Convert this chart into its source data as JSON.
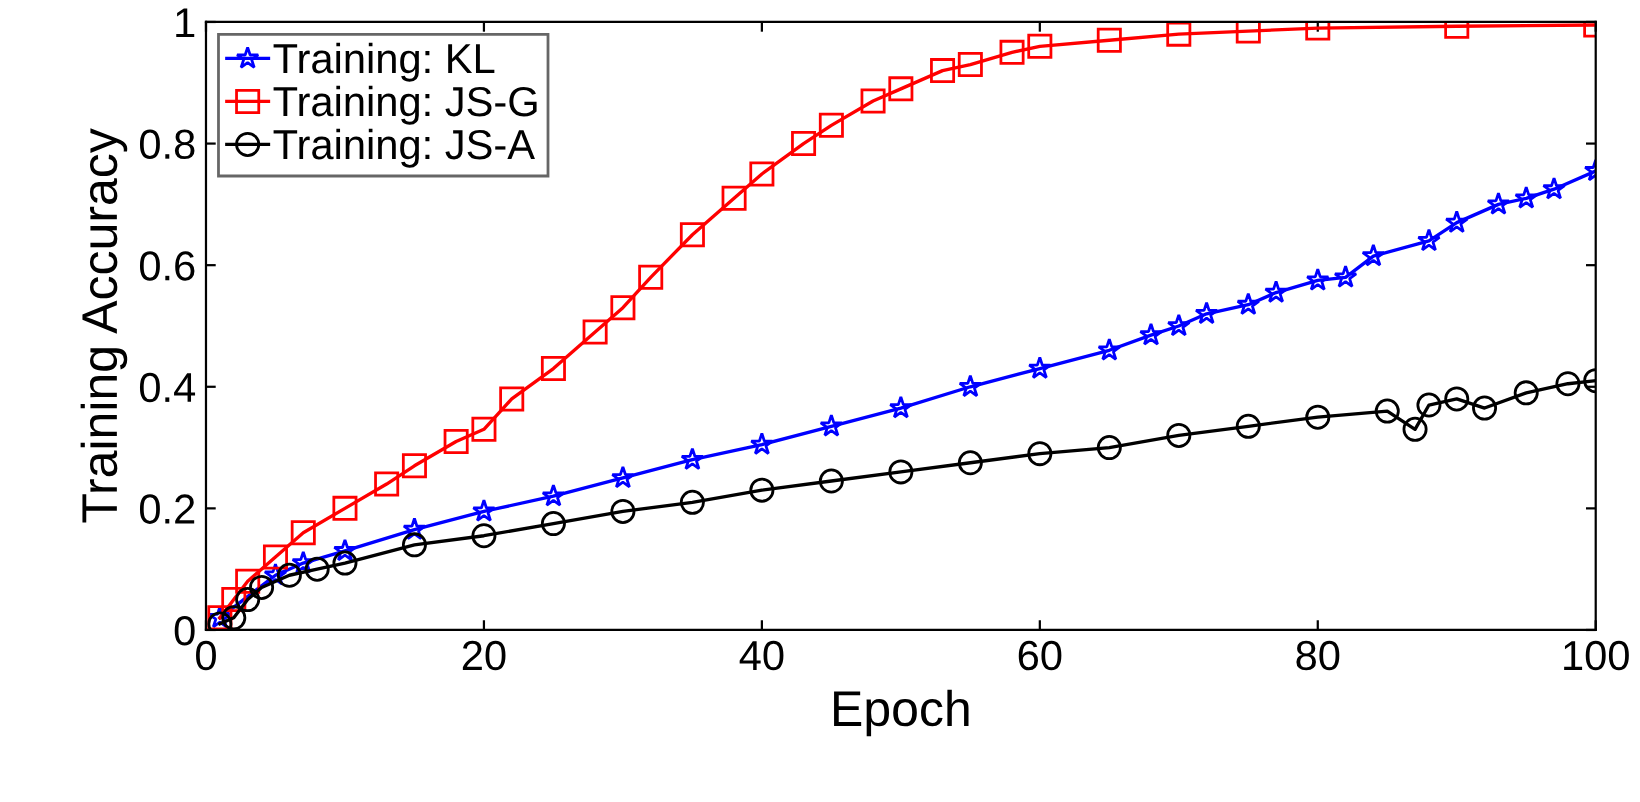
{
  "chart_data": {
    "type": "line",
    "xlabel": "Epoch",
    "ylabel": "Training Accuracy",
    "xlim": [
      0,
      100
    ],
    "ylim": [
      0,
      1
    ],
    "xticks": [
      0,
      20,
      40,
      60,
      80,
      100
    ],
    "yticks": [
      0,
      0.2,
      0.4,
      0.6,
      0.8,
      1
    ],
    "grid": false,
    "legend": "top left",
    "series": [
      {
        "name": "Training: KL",
        "color": "#0000ff",
        "marker": "star",
        "x": [
          1,
          5,
          7,
          10,
          15,
          20,
          25,
          30,
          35,
          40,
          45,
          50,
          55,
          60,
          65,
          68,
          70,
          72,
          75,
          77,
          80,
          82,
          84,
          88,
          90,
          93,
          95,
          97,
          100
        ],
        "values": [
          0.02,
          0.09,
          0.11,
          0.13,
          0.165,
          0.195,
          0.22,
          0.25,
          0.28,
          0.305,
          0.335,
          0.365,
          0.4,
          0.43,
          0.46,
          0.485,
          0.5,
          0.52,
          0.535,
          0.555,
          0.575,
          0.58,
          0.615,
          0.64,
          0.67,
          0.7,
          0.71,
          0.725,
          0.755
        ]
      },
      {
        "name": "Training: JS-G",
        "color": "#ff0000",
        "marker": "square",
        "x": [
          1,
          2,
          3,
          5,
          7,
          10,
          13,
          15,
          18,
          20,
          22,
          25,
          28,
          30,
          32,
          35,
          38,
          40,
          43,
          45,
          48,
          50,
          53,
          55,
          58,
          60,
          65,
          70,
          75,
          80,
          90,
          100
        ],
        "values": [
          0.02,
          0.05,
          0.08,
          0.12,
          0.16,
          0.2,
          0.24,
          0.27,
          0.31,
          0.33,
          0.38,
          0.43,
          0.49,
          0.53,
          0.58,
          0.65,
          0.71,
          0.75,
          0.8,
          0.83,
          0.87,
          0.89,
          0.92,
          0.93,
          0.95,
          0.96,
          0.97,
          0.98,
          0.985,
          0.99,
          0.993,
          0.995
        ]
      },
      {
        "name": "Training: JS-A",
        "color": "#000000",
        "marker": "circle",
        "x": [
          1,
          2,
          3,
          4,
          6,
          8,
          10,
          15,
          20,
          25,
          30,
          35,
          40,
          45,
          50,
          55,
          60,
          65,
          70,
          75,
          80,
          85,
          87,
          88,
          90,
          92,
          95,
          98,
          100
        ],
        "values": [
          0.01,
          0.02,
          0.05,
          0.07,
          0.09,
          0.1,
          0.11,
          0.14,
          0.155,
          0.175,
          0.195,
          0.21,
          0.23,
          0.245,
          0.26,
          0.275,
          0.29,
          0.3,
          0.32,
          0.335,
          0.35,
          0.36,
          0.33,
          0.37,
          0.38,
          0.365,
          0.39,
          0.405,
          0.41
        ]
      }
    ]
  }
}
